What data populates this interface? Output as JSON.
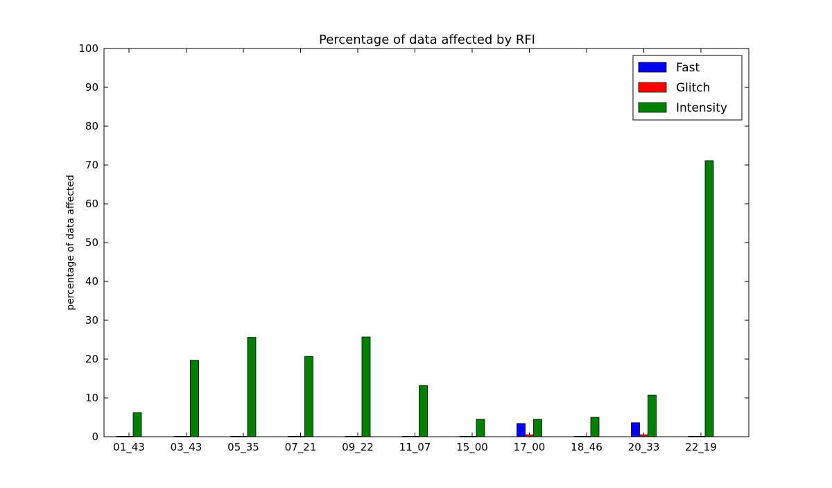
{
  "chart_data": {
    "type": "bar",
    "title": "Percentage of data affected by RFI",
    "xlabel": "",
    "ylabel": "percentage of data affected",
    "ylim": [
      0,
      100
    ],
    "yticks": [
      0,
      10,
      20,
      30,
      40,
      50,
      60,
      70,
      80,
      90,
      100
    ],
    "grid": false,
    "legend_position": "top-right",
    "categories": [
      "01_43",
      "03_43",
      "05_35",
      "07_21",
      "09_22",
      "11_07",
      "15_00",
      "17_00",
      "18_46",
      "20_33",
      "22_19"
    ],
    "series": [
      {
        "name": "Fast",
        "color": "#0000ff",
        "values": [
          0.1,
          0.1,
          0.1,
          0.1,
          0.1,
          0.1,
          0.1,
          3.4,
          0.1,
          3.6,
          0.1
        ]
      },
      {
        "name": "Glitch",
        "color": "#ff0000",
        "values": [
          0.1,
          0.1,
          0.1,
          0.1,
          0.1,
          0.1,
          0.1,
          0.5,
          0.1,
          0.5,
          0.1
        ]
      },
      {
        "name": "Intensity",
        "color": "#008000",
        "values": [
          6.2,
          19.7,
          25.6,
          20.7,
          25.7,
          13.2,
          4.5,
          4.5,
          5.0,
          10.7,
          71.1
        ]
      }
    ]
  }
}
